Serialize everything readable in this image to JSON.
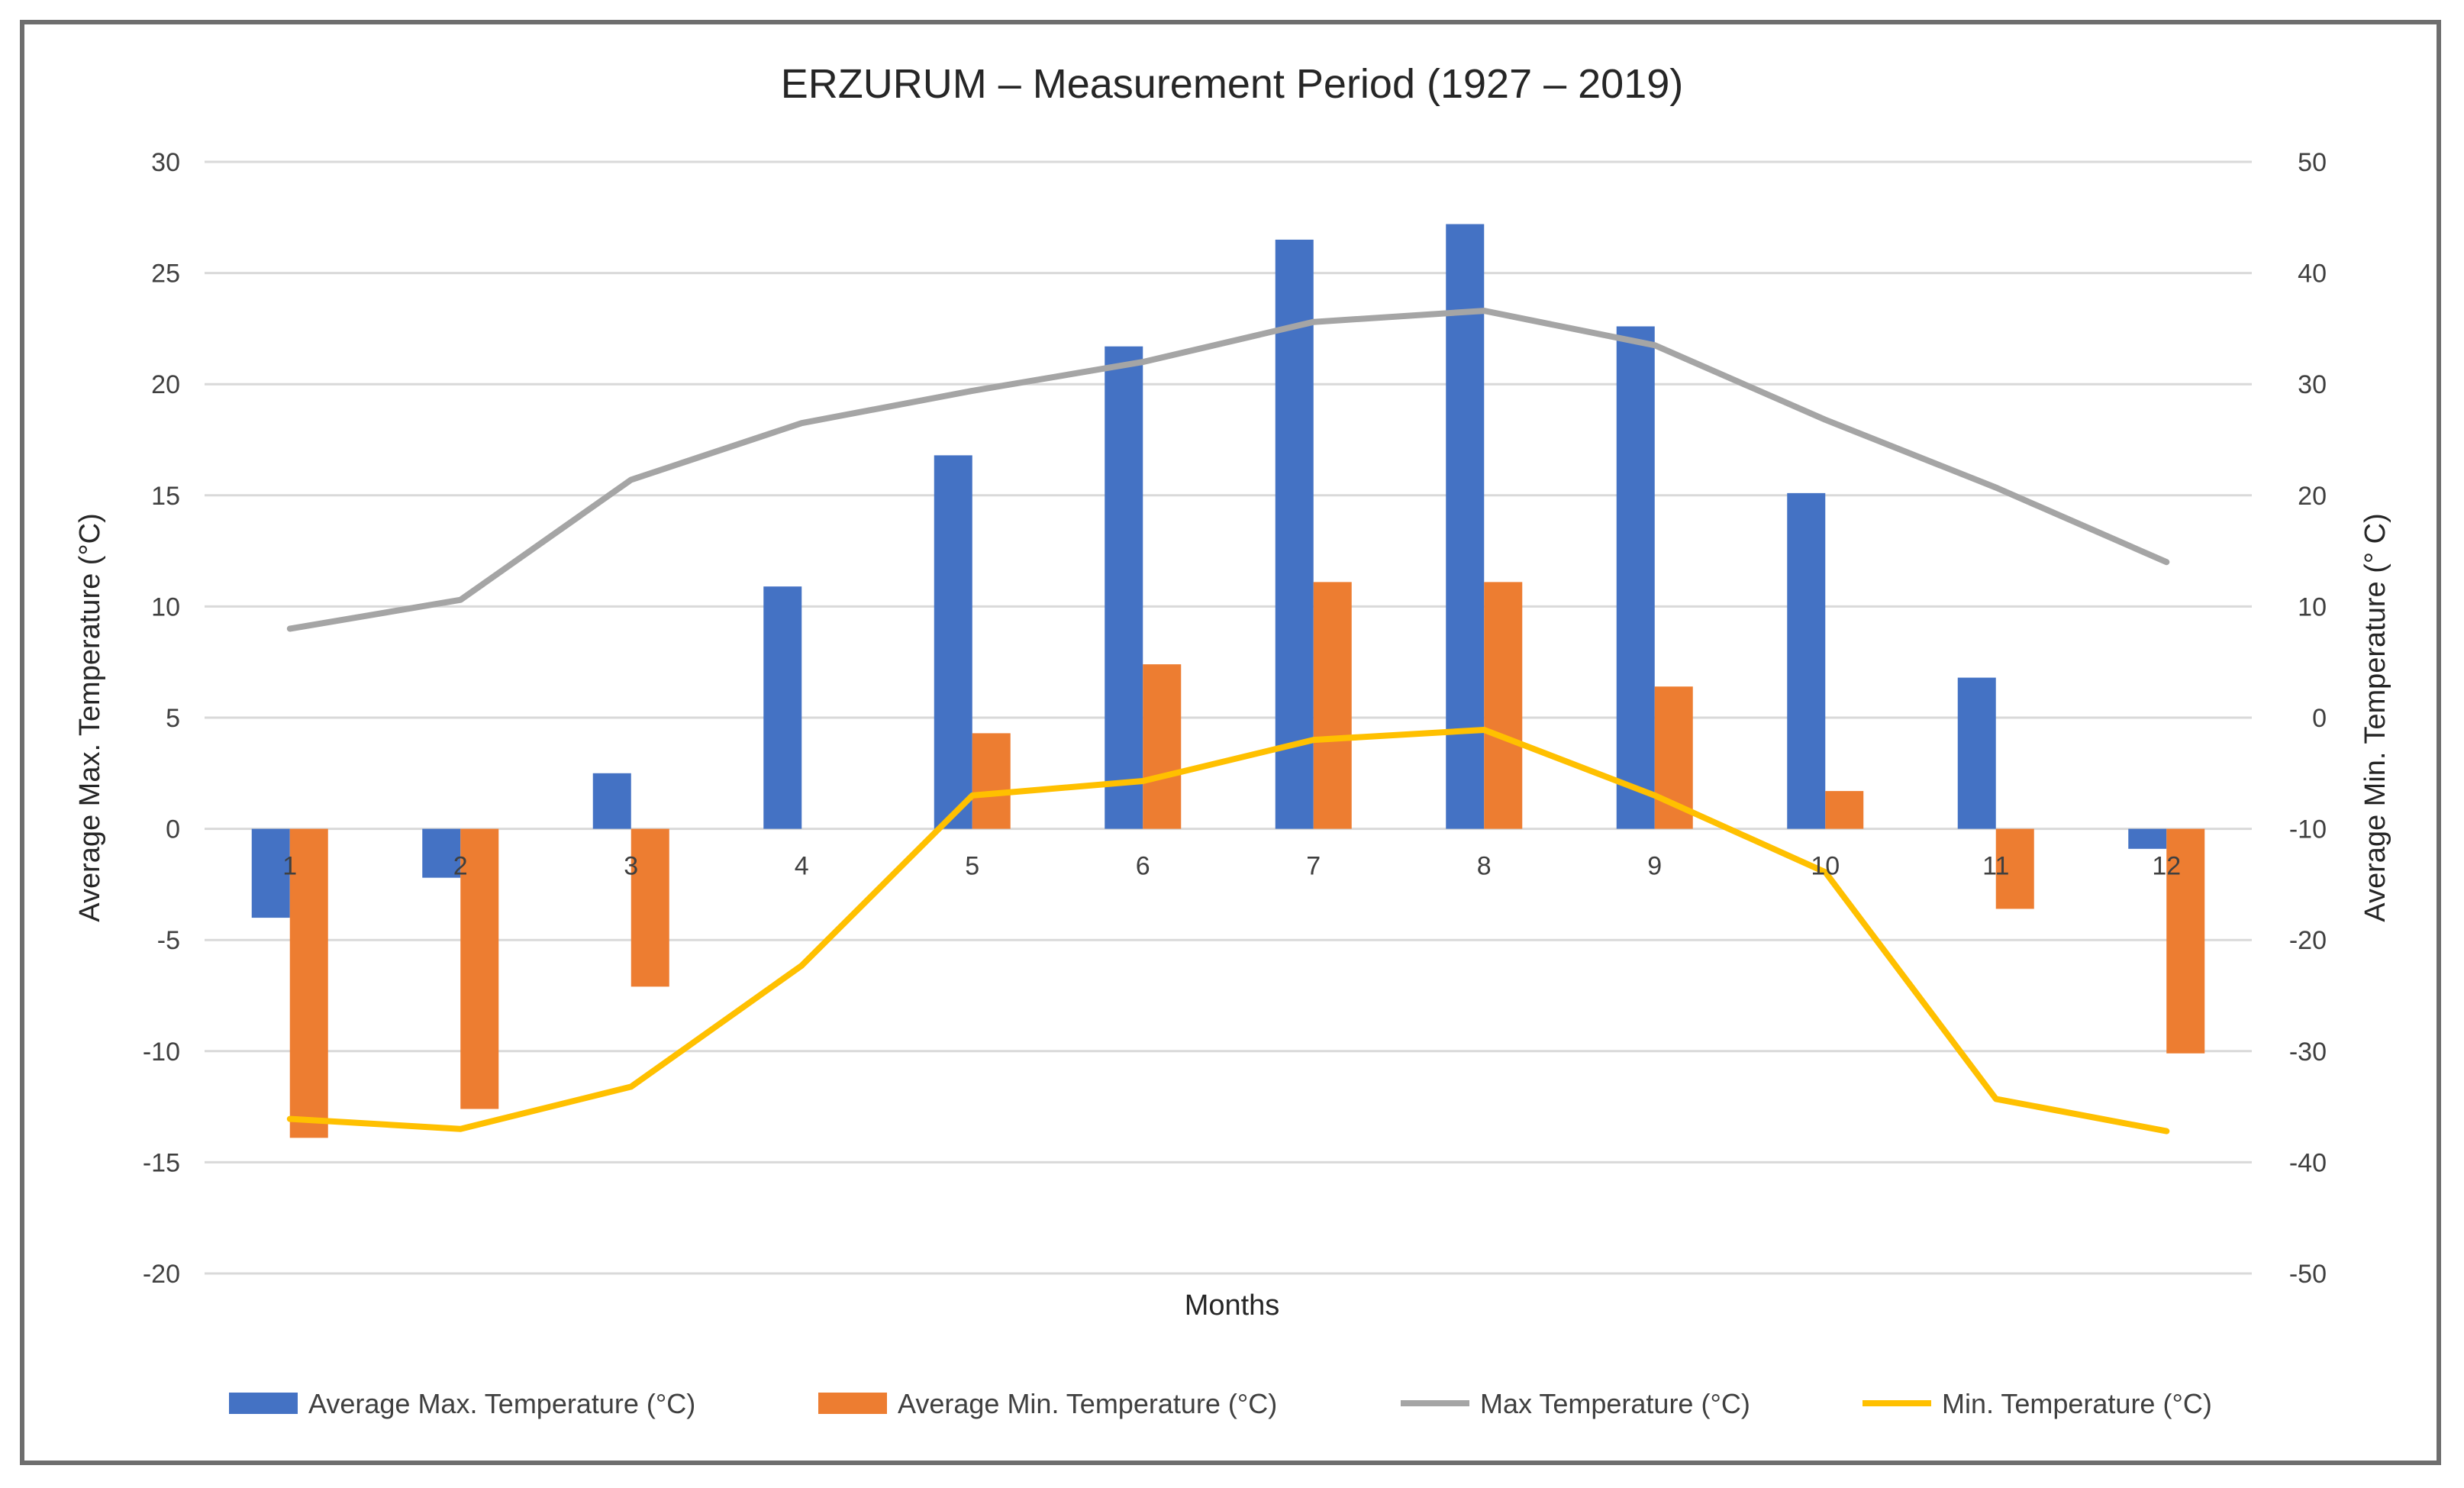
{
  "chart_data": {
    "type": "bar",
    "title": "ERZURUM – Measurement Period (1927 – 2019)",
    "xlabel": "Months",
    "ylabel_left": "Average Max. Temperature (°C)",
    "ylabel_right": "Average Min. Temperature (° C)",
    "categories": [
      "1",
      "2",
      "3",
      "4",
      "5",
      "6",
      "7",
      "8",
      "9",
      "10",
      "11",
      "12"
    ],
    "y_left": {
      "min": -20,
      "max": 30,
      "step": 5,
      "ticks": [
        "-20",
        "-15",
        "-10",
        "-5",
        "0",
        "5",
        "10",
        "15",
        "20",
        "25",
        "30"
      ]
    },
    "y_right": {
      "min": -50,
      "max": 50,
      "step": 10,
      "ticks": [
        "-50",
        "-40",
        "-30",
        "-20",
        "-10",
        "0",
        "10",
        "20",
        "30",
        "40",
        "50"
      ]
    },
    "grid": true,
    "legend_position": "bottom",
    "series": [
      {
        "name": "Average Max. Temperature (°C)",
        "kind": "bar",
        "axis": "left",
        "color": "#4472c4",
        "values": [
          -4.0,
          -2.2,
          2.5,
          10.9,
          16.8,
          21.7,
          26.5,
          27.2,
          22.6,
          15.1,
          6.8,
          -0.9
        ]
      },
      {
        "name": "Average Min. Temperature (°C)",
        "kind": "bar",
        "axis": "left",
        "color": "#ed7d31",
        "values": [
          -13.9,
          -12.6,
          -7.1,
          0.0,
          4.3,
          7.4,
          11.1,
          11.1,
          6.4,
          1.7,
          -3.6,
          -10.1
        ]
      },
      {
        "name": "Max Temperature (°C)",
        "kind": "line",
        "axis": "right",
        "color": "#a5a5a5",
        "values": [
          8.0,
          10.6,
          21.4,
          26.5,
          29.4,
          32.0,
          35.6,
          36.6,
          33.5,
          26.8,
          20.7,
          14.0
        ]
      },
      {
        "name": "Min. Temperature (°C)",
        "kind": "line",
        "axis": "right",
        "color": "#ffc000",
        "values": [
          -36.1,
          -37.0,
          -33.2,
          -22.3,
          -7.0,
          -5.7,
          -2.0,
          -1.1,
          -7.0,
          -13.9,
          -34.3,
          -37.2
        ]
      }
    ]
  }
}
